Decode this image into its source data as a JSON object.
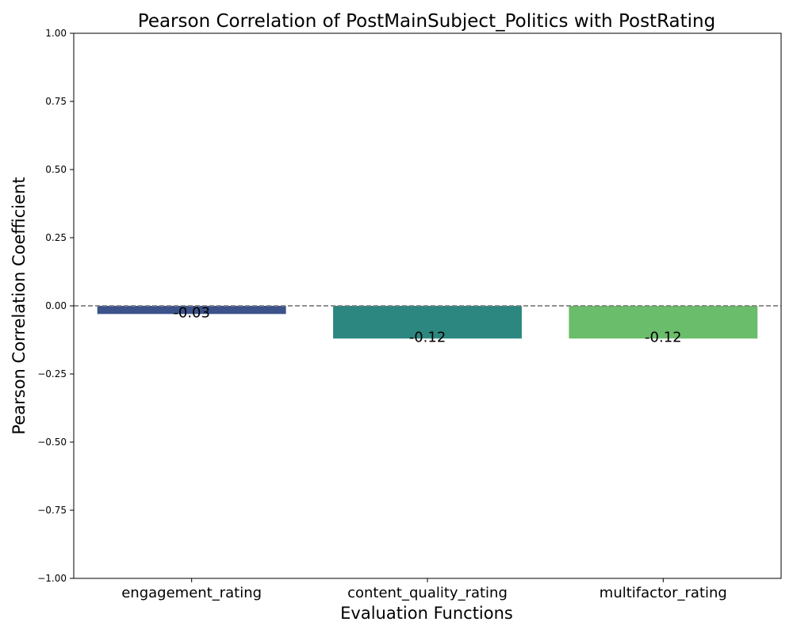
{
  "chart_data": {
    "type": "bar",
    "title": "Pearson Correlation of PostMainSubject_Politics with PostRating",
    "xlabel": "Evaluation Functions",
    "ylabel": "Pearson Correlation Coefficient",
    "categories": [
      "engagement_rating",
      "content_quality_rating",
      "multifactor_rating"
    ],
    "values": [
      -0.03,
      -0.12,
      -0.12
    ],
    "value_labels": [
      "-0.03",
      "-0.12",
      "-0.12"
    ],
    "colors": [
      "#3b528b",
      "#2c8780",
      "#6abd6a"
    ],
    "ylim": [
      -1.0,
      1.0
    ],
    "yticks": [
      -1.0,
      -0.75,
      -0.5,
      -0.25,
      0.0,
      0.25,
      0.5,
      0.75,
      1.0
    ],
    "ytick_labels": [
      "−1.00",
      "−0.75",
      "−0.50",
      "−0.25",
      "0.00",
      "0.25",
      "0.50",
      "0.75",
      "1.00"
    ],
    "reference_line": {
      "y": 0.0,
      "style": "dashed",
      "color": "#808080"
    },
    "grid": false,
    "legend": "none"
  }
}
